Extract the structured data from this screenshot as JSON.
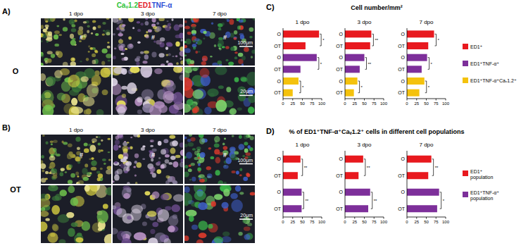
{
  "figure": {
    "stain_legend": [
      {
        "text": "Caᵥ1.2",
        "color": "#2fc43a"
      },
      {
        "text": "ED1",
        "color": "#e3202a"
      },
      {
        "text": "TNF-α",
        "color": "#2f4fd6"
      }
    ],
    "image_panels": [
      {
        "label": "A)",
        "group": "O",
        "columns": [
          "1 dpo",
          "3 dpo",
          "7 dpo"
        ],
        "scale_bars": [
          "100μm",
          "20μm"
        ],
        "marks": [
          "#",
          "#",
          "#"
        ]
      },
      {
        "label": "B)",
        "group": "OT",
        "columns": [
          "1 dpo",
          "3 dpo",
          "7 dpo"
        ],
        "scale_bars": [
          "100μm",
          "20μm"
        ],
        "marks": [
          "#",
          "#",
          "#"
        ]
      }
    ],
    "chart_panels": [
      {
        "label": "C)",
        "title": "Cell number/mm²"
      },
      {
        "label": "D)",
        "title": "% of ED1⁺TNF-α⁺Caᵥ1.2⁺ cells in different cell populations"
      }
    ]
  },
  "chart_data": [
    {
      "type": "bar",
      "orientation": "horizontal",
      "title": "1 dpo",
      "categories": [
        "O",
        "OT",
        "O",
        "OT",
        "O",
        "OT"
      ],
      "series": [
        {
          "color": "#e8191e",
          "values": [
            93,
            58,
            null,
            null,
            null,
            null
          ]
        },
        {
          "color": "#7d2f9a",
          "values": [
            null,
            null,
            87,
            45,
            null,
            null
          ]
        },
        {
          "color": "#f4c20d",
          "values": [
            null,
            null,
            null,
            null,
            40,
            25
          ]
        }
      ],
      "xlim": [
        0,
        100
      ],
      "xticks": [
        0,
        25,
        50,
        75,
        100
      ],
      "significance": [
        "*",
        "*",
        "*"
      ]
    },
    {
      "type": "bar",
      "orientation": "horizontal",
      "title": "3 dpo",
      "categories": [
        "O",
        "OT",
        "O",
        "OT",
        "O",
        "OT"
      ],
      "series": [
        {
          "color": "#e8191e",
          "values": [
            68,
            65,
            null,
            null,
            null,
            null
          ]
        },
        {
          "color": "#7d2f9a",
          "values": [
            null,
            null,
            50,
            38,
            null,
            null
          ]
        },
        {
          "color": "#f4c20d",
          "values": [
            null,
            null,
            null,
            null,
            32,
            23
          ]
        }
      ],
      "xlim": [
        0,
        100
      ],
      "xticks": [
        0,
        25,
        50,
        75,
        100
      ],
      "significance": [
        "**",
        "**",
        "*"
      ]
    },
    {
      "type": "bar",
      "orientation": "horizontal",
      "title": "7 dpo",
      "categories": [
        "O",
        "OT",
        "O",
        "OT",
        "O",
        "OT"
      ],
      "series": [
        {
          "name": "ED1⁺",
          "color": "#e8191e",
          "values": [
            70,
            55,
            null,
            null,
            null,
            null
          ]
        },
        {
          "name": "ED1⁺TNF-α⁺",
          "color": "#7d2f9a",
          "values": [
            null,
            null,
            52,
            38,
            null,
            null
          ]
        },
        {
          "name": "ED1⁺TNF-α⁺Caᵥ1.2⁺",
          "color": "#f4c20d",
          "values": [
            null,
            null,
            null,
            null,
            45,
            32
          ]
        }
      ],
      "xlim": [
        0,
        100
      ],
      "xticks": [
        0,
        25,
        50,
        75,
        100
      ],
      "significance": [
        "*",
        "*",
        "*"
      ],
      "legend": "right"
    },
    {
      "type": "bar",
      "orientation": "horizontal",
      "title": "1 dpo",
      "categories": [
        "O",
        "OT",
        "O",
        "OT"
      ],
      "series": [
        {
          "color": "#e8191e",
          "values": [
            45,
            38,
            null,
            null
          ]
        },
        {
          "color": "#7d2f9a",
          "values": [
            null,
            null,
            48,
            48
          ]
        }
      ],
      "xlim": [
        0,
        100
      ],
      "xticks": [
        0,
        25,
        50,
        75,
        100
      ],
      "significance": [
        "**",
        "**"
      ]
    },
    {
      "type": "bar",
      "orientation": "horizontal",
      "title": "3 dpo",
      "categories": [
        "O",
        "OT",
        "O",
        "OT"
      ],
      "series": [
        {
          "color": "#e8191e",
          "values": [
            47,
            35,
            null,
            null
          ]
        },
        {
          "color": "#7d2f9a",
          "values": [
            null,
            null,
            65,
            60
          ]
        }
      ],
      "xlim": [
        0,
        100
      ],
      "xticks": [
        0,
        25,
        50,
        75,
        100
      ],
      "significance": [
        "**",
        "**"
      ]
    },
    {
      "type": "bar",
      "orientation": "horizontal",
      "title": "7 dpo",
      "categories": [
        "O",
        "OT",
        "O",
        "OT"
      ],
      "series": [
        {
          "name": "ED1⁺ population",
          "color": "#e8191e",
          "values": [
            63,
            55,
            null,
            null
          ]
        },
        {
          "name": "ED1⁺TNF-α⁺ population",
          "color": "#7d2f9a",
          "values": [
            null,
            null,
            83,
            78
          ]
        }
      ],
      "xlim": [
        0,
        100
      ],
      "xticks": [
        0,
        25,
        50,
        75,
        100
      ],
      "significance": [
        "**",
        "*"
      ],
      "legend": "right"
    }
  ]
}
